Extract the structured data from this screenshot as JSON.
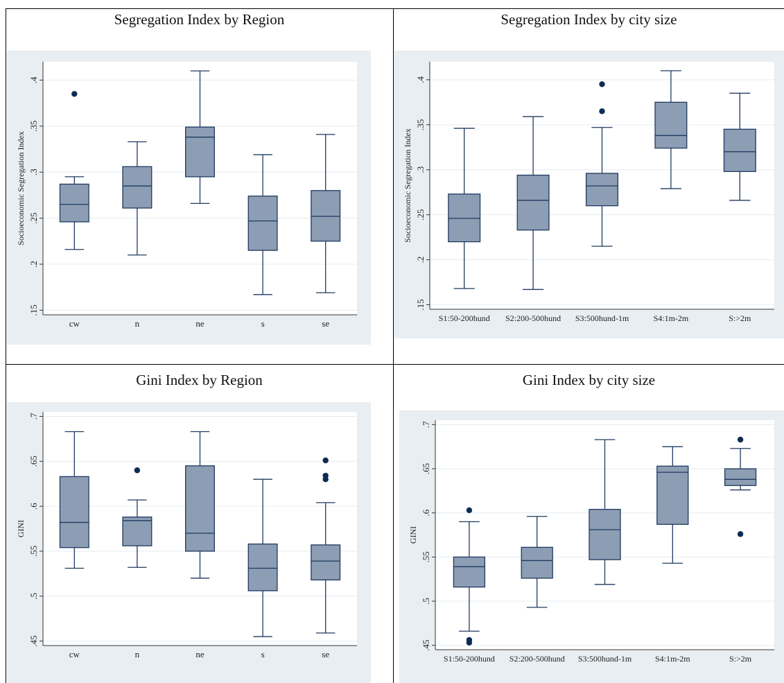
{
  "panels": [
    {
      "title": "Segregation Index by Region",
      "chart_data": {
        "type": "box",
        "title": "Segregation Index by Region",
        "xlabel": "",
        "ylabel": "Socioeconomic Segregation Index",
        "ylim": [
          0.145,
          0.42
        ],
        "yticks": [
          0.15,
          0.2,
          0.25,
          0.3,
          0.35,
          0.4
        ],
        "ytick_labels": [
          ".15",
          ".2",
          ".25",
          ".3",
          ".35",
          ".4"
        ],
        "categories": [
          "cw",
          "n",
          "ne",
          "s",
          "se"
        ],
        "boxes": [
          {
            "category": "cw",
            "whisker_low": 0.216,
            "q1": 0.246,
            "median": 0.265,
            "q3": 0.287,
            "whisker_high": 0.295,
            "outliers": [
              0.385
            ]
          },
          {
            "category": "n",
            "whisker_low": 0.21,
            "q1": 0.261,
            "median": 0.285,
            "q3": 0.306,
            "whisker_high": 0.333,
            "outliers": []
          },
          {
            "category": "ne",
            "whisker_low": 0.266,
            "q1": 0.295,
            "median": 0.338,
            "q3": 0.349,
            "whisker_high": 0.41,
            "outliers": []
          },
          {
            "category": "s",
            "whisker_low": 0.167,
            "q1": 0.215,
            "median": 0.247,
            "q3": 0.274,
            "whisker_high": 0.319,
            "outliers": []
          },
          {
            "category": "se",
            "whisker_low": 0.169,
            "q1": 0.225,
            "median": 0.252,
            "q3": 0.28,
            "whisker_high": 0.341,
            "outliers": []
          }
        ],
        "grid": true,
        "colors": {
          "box": "#8c9db4",
          "line": "#1f3a5f",
          "outlier": "#0d2c54",
          "panel_bg": "#e8eef2"
        }
      }
    },
    {
      "title": "Segregation Index by city size",
      "chart_data": {
        "type": "box",
        "title": "Segregation Index by city size",
        "xlabel": "",
        "ylabel": "Socioeconomic Segregation Index",
        "ylim": [
          0.145,
          0.42
        ],
        "yticks": [
          0.15,
          0.2,
          0.25,
          0.3,
          0.35,
          0.4
        ],
        "ytick_labels": [
          ".15",
          ".2",
          ".25",
          ".3",
          ".35",
          ".4"
        ],
        "categories": [
          "S1:50-200hund",
          "S2:200-500hund",
          "S3:500hund-1m",
          "S4:1m-2m",
          "S:>2m"
        ],
        "boxes": [
          {
            "category": "S1:50-200hund",
            "whisker_low": 0.168,
            "q1": 0.22,
            "median": 0.246,
            "q3": 0.273,
            "whisker_high": 0.346,
            "outliers": []
          },
          {
            "category": "S2:200-500hund",
            "whisker_low": 0.167,
            "q1": 0.233,
            "median": 0.266,
            "q3": 0.294,
            "whisker_high": 0.359,
            "outliers": []
          },
          {
            "category": "S3:500hund-1m",
            "whisker_low": 0.215,
            "q1": 0.26,
            "median": 0.282,
            "q3": 0.296,
            "whisker_high": 0.347,
            "outliers": [
              0.365,
              0.395
            ]
          },
          {
            "category": "S4:1m-2m",
            "whisker_low": 0.279,
            "q1": 0.324,
            "median": 0.338,
            "q3": 0.375,
            "whisker_high": 0.41,
            "outliers": []
          },
          {
            "category": "S:>2m",
            "whisker_low": 0.266,
            "q1": 0.298,
            "median": 0.32,
            "q3": 0.345,
            "whisker_high": 0.385,
            "outliers": []
          }
        ],
        "grid": true,
        "colors": {
          "box": "#8c9db4",
          "line": "#1f3a5f",
          "outlier": "#0d2c54",
          "panel_bg": "#e8eef2"
        }
      }
    },
    {
      "title": "Gini Index by Region",
      "chart_data": {
        "type": "box",
        "title": "Gini Index by Region",
        "xlabel": "",
        "ylabel": "GINI",
        "ylim": [
          0.445,
          0.705
        ],
        "yticks": [
          0.45,
          0.5,
          0.55,
          0.6,
          0.65,
          0.7
        ],
        "ytick_labels": [
          ".45",
          ".5",
          ".55",
          ".6",
          ".65",
          ".7"
        ],
        "categories": [
          "cw",
          "n",
          "ne",
          "s",
          "se"
        ],
        "boxes": [
          {
            "category": "cw",
            "whisker_low": 0.531,
            "q1": 0.554,
            "median": 0.582,
            "q3": 0.633,
            "whisker_high": 0.683,
            "outliers": []
          },
          {
            "category": "n",
            "whisker_low": 0.532,
            "q1": 0.556,
            "median": 0.584,
            "q3": 0.588,
            "whisker_high": 0.607,
            "outliers": [
              0.64
            ]
          },
          {
            "category": "ne",
            "whisker_low": 0.52,
            "q1": 0.55,
            "median": 0.57,
            "q3": 0.645,
            "whisker_high": 0.683,
            "outliers": []
          },
          {
            "category": "s",
            "whisker_low": 0.455,
            "q1": 0.506,
            "median": 0.531,
            "q3": 0.558,
            "whisker_high": 0.63,
            "outliers": []
          },
          {
            "category": "se",
            "whisker_low": 0.459,
            "q1": 0.518,
            "median": 0.539,
            "q3": 0.557,
            "whisker_high": 0.604,
            "outliers": [
              0.63,
              0.634,
              0.651
            ]
          }
        ],
        "grid": true,
        "colors": {
          "box": "#8c9db4",
          "line": "#1f3a5f",
          "outlier": "#0d2c54",
          "panel_bg": "#e8eef2"
        }
      }
    },
    {
      "title": "Gini Index by city size",
      "chart_data": {
        "type": "box",
        "title": "Gini Index by city size",
        "xlabel": "",
        "ylabel": "GINI",
        "ylim": [
          0.445,
          0.705
        ],
        "yticks": [
          0.45,
          0.5,
          0.55,
          0.6,
          0.65,
          0.7
        ],
        "ytick_labels": [
          ".45",
          ".5",
          ".55",
          ".6",
          ".65",
          ".7"
        ],
        "categories": [
          "S1:50-200hund",
          "S2:200-500hund",
          "S3:500hund-1m",
          "S4:1m-2m",
          "S:>2m"
        ],
        "boxes": [
          {
            "category": "S1:50-200hund",
            "whisker_low": 0.466,
            "q1": 0.516,
            "median": 0.539,
            "q3": 0.55,
            "whisker_high": 0.59,
            "outliers": [
              0.453,
              0.456,
              0.603
            ]
          },
          {
            "category": "S2:200-500hund",
            "whisker_low": 0.493,
            "q1": 0.526,
            "median": 0.546,
            "q3": 0.561,
            "whisker_high": 0.596,
            "outliers": []
          },
          {
            "category": "S3:500hund-1m",
            "whisker_low": 0.519,
            "q1": 0.547,
            "median": 0.581,
            "q3": 0.604,
            "whisker_high": 0.683,
            "outliers": []
          },
          {
            "category": "S4:1m-2m",
            "whisker_low": 0.543,
            "q1": 0.587,
            "median": 0.646,
            "q3": 0.653,
            "whisker_high": 0.675,
            "outliers": []
          },
          {
            "category": "S:>2m",
            "whisker_low": 0.626,
            "q1": 0.631,
            "median": 0.638,
            "q3": 0.65,
            "whisker_high": 0.673,
            "outliers": [
              0.576,
              0.683
            ]
          }
        ],
        "grid": true,
        "colors": {
          "box": "#8c9db4",
          "line": "#1f3a5f",
          "outlier": "#0d2c54",
          "panel_bg": "#e8eef2"
        }
      }
    }
  ]
}
